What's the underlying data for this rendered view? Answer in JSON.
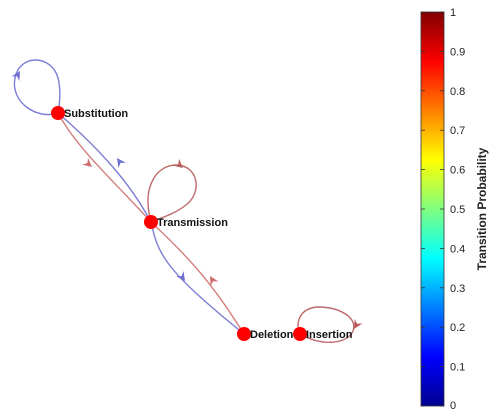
{
  "graph": {
    "nodes": [
      {
        "id": "substitution",
        "label": "Substitution"
      },
      {
        "id": "transmission",
        "label": "Transmission"
      },
      {
        "id": "deletion",
        "label": "Deletion"
      },
      {
        "id": "insertion",
        "label": "Insertion"
      }
    ],
    "node_color": "#ff0000",
    "edges": [
      {
        "from": "substitution",
        "to": "substitution",
        "color": "#6f6fd2"
      },
      {
        "from": "substitution",
        "to": "transmission",
        "color": "#cd6f6f"
      },
      {
        "from": "transmission",
        "to": "substitution",
        "color": "#6f6fd2"
      },
      {
        "from": "transmission",
        "to": "transmission",
        "color": "#b85b5b"
      },
      {
        "from": "transmission",
        "to": "deletion",
        "color": "#6f6fd2"
      },
      {
        "from": "deletion",
        "to": "transmission",
        "color": "#cd6f6f"
      },
      {
        "from": "insertion",
        "to": "insertion",
        "color": "#b85b5b"
      }
    ]
  },
  "colorbar": {
    "title": "Transition Probability",
    "colormap": "jet",
    "range": [
      0,
      1
    ],
    "ticks": [
      "0",
      "0.1",
      "0.2",
      "0.3",
      "0.4",
      "0.5",
      "0.6",
      "0.7",
      "0.8",
      "0.9",
      "1"
    ]
  }
}
